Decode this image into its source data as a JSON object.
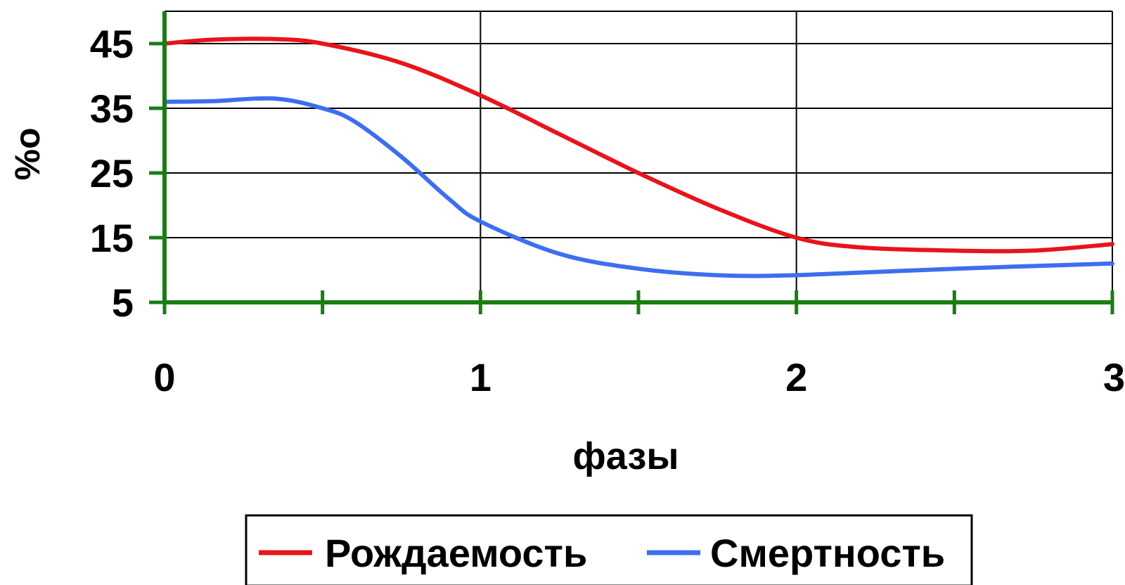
{
  "chart_data": {
    "type": "line",
    "xlabel": "фазы",
    "ylabel": "%o",
    "xlim": [
      0,
      3
    ],
    "ylim": [
      5,
      50
    ],
    "x_ticks": [
      0,
      1,
      2,
      3
    ],
    "x_tick_labels": [
      "0",
      "1",
      "2",
      "3"
    ],
    "x_minor_ticks": [
      0.5,
      1.5,
      2.5
    ],
    "y_ticks": [
      5,
      15,
      25,
      35,
      45
    ],
    "y_tick_labels": [
      "5",
      "15",
      "25",
      "35",
      "45"
    ],
    "grid": true,
    "legend_position": "bottom",
    "series": [
      {
        "name": "Рождаемость",
        "color": "#e8141b",
        "points": [
          [
            0,
            45
          ],
          [
            0.15,
            45.6
          ],
          [
            0.35,
            45.7
          ],
          [
            0.5,
            45
          ],
          [
            0.75,
            42
          ],
          [
            1.0,
            37
          ],
          [
            1.25,
            31
          ],
          [
            1.5,
            25
          ],
          [
            1.75,
            19.5
          ],
          [
            2.0,
            15
          ],
          [
            2.2,
            13.5
          ],
          [
            2.5,
            13
          ],
          [
            2.75,
            13
          ],
          [
            3.0,
            14
          ]
        ]
      },
      {
        "name": "Смертность",
        "color": "#3d6ef0",
        "points": [
          [
            0,
            36
          ],
          [
            0.15,
            36.1
          ],
          [
            0.35,
            36.5
          ],
          [
            0.5,
            35
          ],
          [
            0.6,
            33
          ],
          [
            0.75,
            27.5
          ],
          [
            0.9,
            21
          ],
          [
            1.0,
            17.5
          ],
          [
            1.25,
            12.5
          ],
          [
            1.5,
            10.2
          ],
          [
            1.75,
            9.2
          ],
          [
            2.0,
            9.2
          ],
          [
            2.5,
            10.2
          ],
          [
            3.0,
            11
          ]
        ]
      }
    ]
  }
}
